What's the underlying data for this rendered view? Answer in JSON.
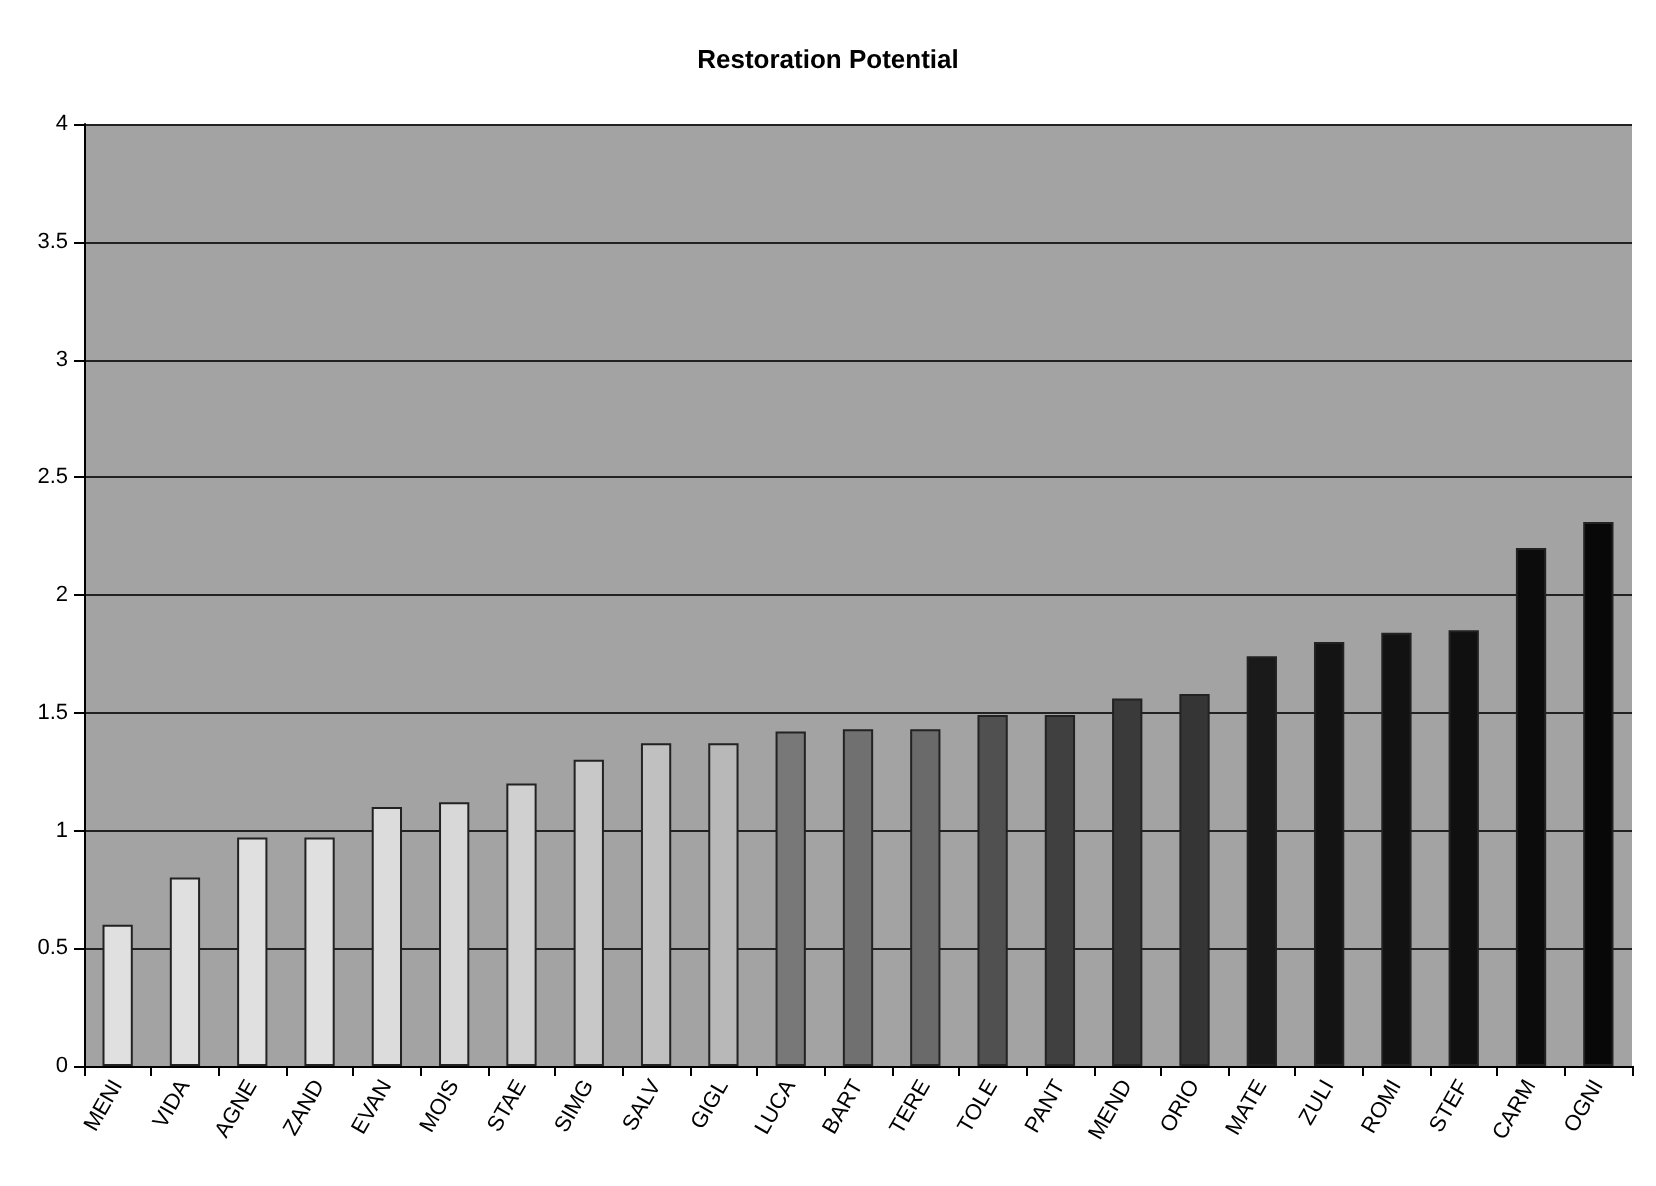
{
  "chart_data": {
    "type": "bar",
    "title": "Restoration Potential",
    "categories": [
      "MENI",
      "VIDA",
      "AGNE",
      "ZAND",
      "EVAN",
      "MOIS",
      "STAE",
      "SIMG",
      "SALV",
      "GIGL",
      "LUCA",
      "BART",
      "TERE",
      "TOLE",
      "PANT",
      "MEND",
      "ORIO",
      "MATE",
      "ZULI",
      "ROMI",
      "STEF",
      "CARM",
      "OGNI"
    ],
    "values": [
      0.6,
      0.8,
      0.97,
      0.97,
      1.1,
      1.12,
      1.2,
      1.3,
      1.37,
      1.37,
      1.42,
      1.43,
      1.43,
      1.49,
      1.49,
      1.56,
      1.58,
      1.74,
      1.8,
      1.84,
      1.85,
      2.2,
      2.31
    ],
    "colors": [
      "#e0e0e0",
      "#e0e0e0",
      "#e0e0e0",
      "#e0e0e0",
      "#dcdcdc",
      "#d8d8d8",
      "#d0d0d0",
      "#c8c8c8",
      "#c0c0c0",
      "#b8b8b8",
      "#787878",
      "#707070",
      "#6a6a6a",
      "#505050",
      "#404040",
      "#3a3a3a",
      "#353535",
      "#1a1a1a",
      "#141414",
      "#121212",
      "#101010",
      "#0c0c0c",
      "#080808"
    ],
    "ylim": [
      0,
      4
    ],
    "yticks": [
      0,
      0.5,
      1,
      1.5,
      2,
      2.5,
      3,
      3.5,
      4
    ],
    "grid": "y"
  }
}
